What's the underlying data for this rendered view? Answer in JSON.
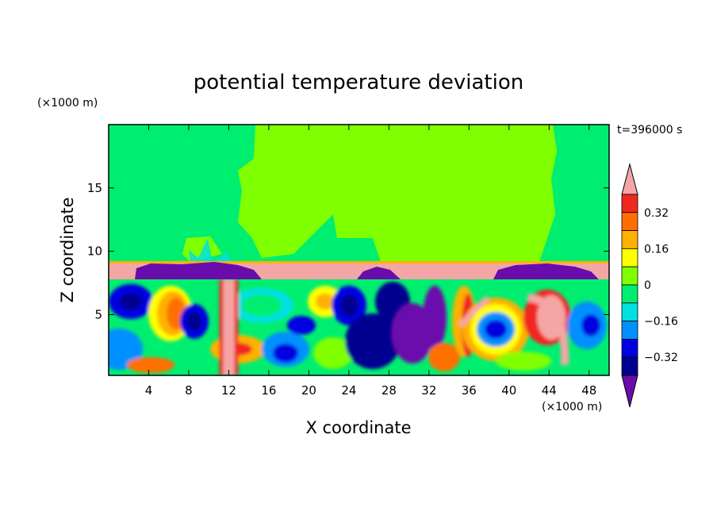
{
  "chart_data": {
    "type": "heatmap",
    "title": "potential temperature deviation",
    "xlabel": "X coordinate",
    "ylabel": "Z coordinate",
    "x_unit": "(×1000 m)",
    "y_unit": "(×1000 m)",
    "time_label": "t=396000 s",
    "xlim": [
      0,
      50
    ],
    "ylim": [
      0.2,
      20
    ],
    "x_ticks": [
      4,
      8,
      12,
      16,
      20,
      24,
      28,
      32,
      36,
      40,
      44,
      48
    ],
    "y_ticks": [
      5,
      10,
      15
    ],
    "colorbar": {
      "labels": [
        {
          "value": 0.32,
          "text": "0.32"
        },
        {
          "value": 0.16,
          "text": "0.16"
        },
        {
          "value": 0,
          "text": "0"
        },
        {
          "value": -0.16,
          "text": "−0.16"
        },
        {
          "value": -0.32,
          "text": "−0.32"
        }
      ],
      "levels": [
        {
          "range": "> 0.40",
          "color": "#f4a6a6"
        },
        {
          "range": "0.32 to 0.40",
          "color": "#f02820"
        },
        {
          "range": "0.24 to 0.32",
          "color": "#ff6f00"
        },
        {
          "range": "0.16 to 0.24",
          "color": "#ffb000"
        },
        {
          "range": "0.08 to 0.16",
          "color": "#ffff00"
        },
        {
          "range": "0 to 0.08",
          "color": "#80ff00"
        },
        {
          "range": "-0.08 to 0",
          "color": "#00ee70"
        },
        {
          "range": "-0.16 to -0.08",
          "color": "#00e0e0"
        },
        {
          "range": "-0.24 to -0.16",
          "color": "#0090ff"
        },
        {
          "range": "-0.32 to -0.24",
          "color": "#0000e0"
        },
        {
          "range": "-0.40 to -0.32",
          "color": "#000090"
        },
        {
          "range": "< -0.40",
          "color": "#6a0cac"
        }
      ]
    },
    "field_regions": {
      "upper_layer": {
        "z_range": [
          9,
          20
        ],
        "dominant_values": "0 to 0.08 in x 15-45, -0.08 to 0 elsewhere"
      },
      "inversion_band": {
        "z_range": [
          7.5,
          9
        ],
        "value": "> 0.40"
      },
      "dense_patches_at_inversion": [
        {
          "x_range": [
            3,
            14
          ],
          "value": "< -0.40"
        },
        {
          "x_range": [
            25,
            28
          ],
          "value": "< -0.40"
        },
        {
          "x_range": [
            38,
            48
          ],
          "value": "< -0.40"
        }
      ],
      "lower_layer": {
        "z_range": [
          0.2,
          7.5
        ],
        "value_range": [
          -0.4,
          0.4
        ],
        "features": [
          {
            "x": 12,
            "z": 4,
            "value": "> 0.40",
            "shape": "vertical plume"
          },
          {
            "x": 30,
            "z": 3,
            "value": "< -0.40",
            "shape": "descending streaks"
          },
          {
            "x": 39,
            "z": 3.5,
            "value": "-0.32 to -0.24",
            "shape": "vortex core"
          },
          {
            "x": 44.5,
            "z": 3.5,
            "value": "> 0.40",
            "shape": "warm arc"
          }
        ]
      }
    }
  }
}
